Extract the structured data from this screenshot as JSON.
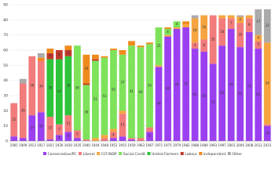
{
  "chart_data": {
    "type": "stacked_bar",
    "categories": [
      "1905",
      "1909",
      "1913",
      "1917",
      "1921",
      "1926",
      "1930",
      "1935",
      "1940",
      "1944",
      "1948",
      "1952",
      "1955",
      "1959",
      "1963",
      "1967",
      "1971",
      "1975",
      "1979",
      "1982",
      "1986",
      "1989",
      "1993",
      "1997",
      "2001",
      "2004",
      "2008",
      "2012",
      "2015"
    ],
    "series": [
      {
        "name": "Conservative/PC",
        "color": "#9b40f0",
        "values": [
          3,
          2,
          17,
          19,
          1,
          4,
          6,
          2,
          0,
          0,
          0,
          2,
          3,
          1,
          0,
          6,
          49,
          69,
          74,
          75,
          61,
          59,
          51,
          63,
          74,
          62,
          72,
          61,
          10
        ]
      },
      {
        "name": "Liberal",
        "color": "#f27b7b",
        "values": [
          22,
          36,
          39,
          34,
          15,
          7,
          11,
          5,
          1,
          0,
          2,
          4,
          15,
          1,
          2,
          3,
          0,
          0,
          0,
          0,
          4,
          8,
          32,
          18,
          7,
          16,
          9,
          5,
          1
        ]
      },
      {
        "name": "CCF/NDP",
        "color": "#f5a540",
        "values": [
          0,
          0,
          0,
          0,
          0,
          0,
          0,
          0,
          0,
          2,
          2,
          2,
          2,
          0,
          0,
          0,
          1,
          1,
          1,
          2,
          16,
          16,
          0,
          2,
          2,
          4,
          2,
          4,
          54
        ]
      },
      {
        "name": "Social Credit",
        "color": "#7ee25a",
        "values": [
          0,
          0,
          0,
          0,
          0,
          0,
          0,
          56,
          36,
          51,
          51,
          52,
          37,
          61,
          60,
          55,
          25,
          4,
          4,
          0,
          0,
          0,
          0,
          0,
          0,
          0,
          0,
          0,
          0
        ]
      },
      {
        "name": "United Farmers",
        "color": "#2ec43a",
        "values": [
          0,
          0,
          0,
          0,
          38,
          43,
          39,
          0,
          0,
          0,
          0,
          0,
          0,
          0,
          0,
          0,
          0,
          0,
          0,
          0,
          0,
          0,
          0,
          0,
          0,
          0,
          0,
          0,
          0
        ]
      },
      {
        "name": "Labour",
        "color": "#c0392b",
        "values": [
          0,
          0,
          0,
          0,
          4,
          6,
          4,
          0,
          1,
          1,
          0,
          0,
          0,
          0,
          0,
          0,
          0,
          0,
          0,
          0,
          0,
          0,
          0,
          0,
          0,
          0,
          0,
          0,
          0
        ]
      },
      {
        "name": "Independent",
        "color": "#f08a1c",
        "values": [
          0,
          0,
          0,
          2,
          3,
          0,
          3,
          0,
          19,
          3,
          1,
          1,
          3,
          3,
          1,
          1,
          0,
          1,
          0,
          2,
          0,
          0,
          0,
          0,
          0,
          0,
          0,
          0,
          0
        ]
      },
      {
        "name": "Other",
        "color": "#aaaaaa",
        "values": [
          0,
          3,
          0,
          3,
          0,
          0,
          0,
          0,
          0,
          0,
          0,
          0,
          0,
          0,
          0,
          0,
          0,
          0,
          0,
          0,
          2,
          0,
          0,
          0,
          0,
          1,
          0,
          17,
          22
        ]
      }
    ],
    "ylim": [
      0,
      90
    ],
    "yticks": [
      0,
      10,
      20,
      30,
      40,
      50,
      60,
      70,
      80,
      90
    ],
    "grid": true
  }
}
